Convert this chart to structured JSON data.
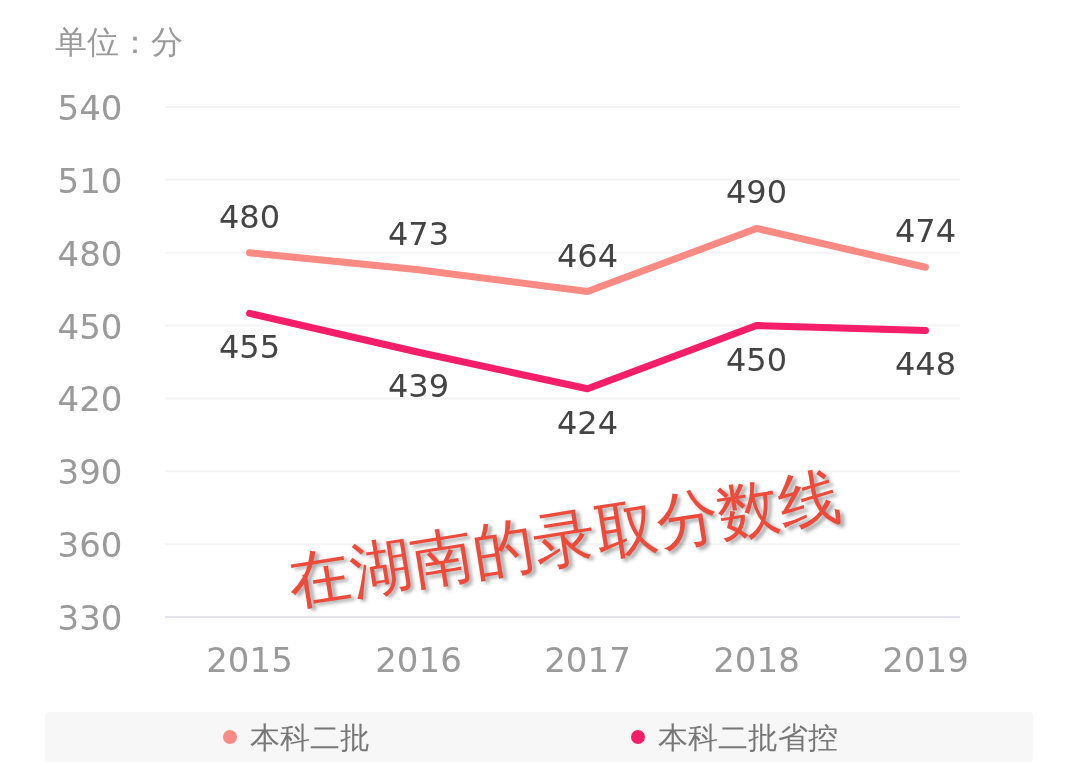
{
  "chart_data": {
    "type": "line",
    "ylabel": "单位：分",
    "categories": [
      "2015",
      "2016",
      "2017",
      "2018",
      "2019"
    ],
    "series": [
      {
        "name": "本科二批",
        "color": "#fa8a84",
        "values": [
          480,
          473,
          464,
          490,
          474
        ]
      },
      {
        "name": "本科二批省控",
        "color": "#f51e68",
        "values": [
          455,
          439,
          424,
          450,
          448
        ]
      }
    ],
    "ylim": [
      330,
      540
    ],
    "yticks": [
      330,
      360,
      390,
      420,
      450,
      480,
      510,
      540
    ],
    "grid": "y",
    "data_labels": true,
    "legend": "bottom",
    "marker": "none",
    "line_style": "solid",
    "annotations": [
      "在湖南的录取分数线"
    ]
  }
}
